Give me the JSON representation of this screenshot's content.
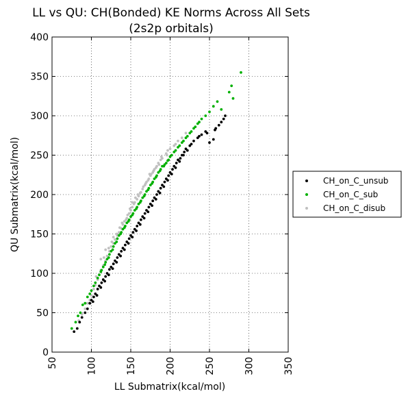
{
  "chart_data": {
    "type": "scatter",
    "title": "LL vs QU: CH(Bonded) KE Norms Across All Sets",
    "subtitle": "(2s2p orbitals)",
    "xlabel": "LL Submatrix(kcal/mol)",
    "ylabel": "QU Submatrix(kcal/mol)",
    "xlim": [
      50,
      350
    ],
    "ylim": [
      0,
      400
    ],
    "x_ticks": [
      50,
      100,
      150,
      200,
      250,
      300,
      350
    ],
    "y_ticks": [
      0,
      50,
      100,
      150,
      200,
      250,
      300,
      350,
      400
    ],
    "grid": true,
    "legend_position": "outside right",
    "series": [
      {
        "name": "CH_on_C_disub",
        "color": "#c0c0c0",
        "points": [
          [
            84,
            40
          ],
          [
            88,
            48
          ],
          [
            92,
            55
          ],
          [
            95,
            62
          ],
          [
            98,
            66
          ],
          [
            100,
            72
          ],
          [
            103,
            80
          ],
          [
            105,
            85
          ],
          [
            108,
            92
          ],
          [
            110,
            98
          ],
          [
            112,
            104
          ],
          [
            115,
            110
          ],
          [
            118,
            116
          ],
          [
            120,
            122
          ],
          [
            123,
            128
          ],
          [
            125,
            134
          ],
          [
            128,
            138
          ],
          [
            130,
            143
          ],
          [
            133,
            148
          ],
          [
            135,
            152
          ],
          [
            138,
            157
          ],
          [
            140,
            162
          ],
          [
            142,
            166
          ],
          [
            145,
            170
          ],
          [
            148,
            176
          ],
          [
            150,
            180
          ],
          [
            152,
            184
          ],
          [
            155,
            190
          ],
          [
            158,
            194
          ],
          [
            160,
            198
          ],
          [
            163,
            203
          ],
          [
            165,
            207
          ],
          [
            168,
            212
          ],
          [
            170,
            216
          ],
          [
            173,
            220
          ],
          [
            175,
            224
          ],
          [
            178,
            228
          ],
          [
            180,
            232
          ],
          [
            183,
            236
          ],
          [
            185,
            240
          ],
          [
            188,
            244
          ],
          [
            190,
            246
          ],
          [
            195,
            252
          ],
          [
            200,
            258
          ],
          [
            205,
            262
          ],
          [
            210,
            268
          ],
          [
            215,
            272
          ],
          [
            220,
            278
          ],
          [
            118,
            130
          ],
          [
            126,
            140
          ],
          [
            136,
            158
          ],
          [
            146,
            174
          ],
          [
            156,
            196
          ],
          [
            166,
            210
          ],
          [
            176,
            226
          ],
          [
            186,
            238
          ],
          [
            132,
            150
          ],
          [
            144,
            168
          ],
          [
            154,
            188
          ],
          [
            162,
            202
          ],
          [
            172,
            218
          ],
          [
            182,
            234
          ],
          [
            112,
            118
          ],
          [
            122,
            132
          ],
          [
            139,
            164
          ],
          [
            149,
            182
          ],
          [
            159,
            200
          ],
          [
            169,
            214
          ],
          [
            179,
            230
          ],
          [
            189,
            248
          ],
          [
            197,
            256
          ],
          [
            207,
            264
          ],
          [
            106,
            96
          ],
          [
            116,
            120
          ],
          [
            128,
            146
          ],
          [
            152,
            190
          ],
          [
            174,
            226
          ],
          [
            196,
            250
          ]
        ]
      },
      {
        "name": "CH_on_C_sub",
        "color": "#00b000",
        "points": [
          [
            75,
            30
          ],
          [
            80,
            38
          ],
          [
            83,
            46
          ],
          [
            86,
            50
          ],
          [
            89,
            60
          ],
          [
            92,
            62
          ],
          [
            95,
            70
          ],
          [
            98,
            74
          ],
          [
            100,
            78
          ],
          [
            103,
            84
          ],
          [
            105,
            88
          ],
          [
            108,
            94
          ],
          [
            110,
            98
          ],
          [
            113,
            104
          ],
          [
            115,
            108
          ],
          [
            118,
            114
          ],
          [
            120,
            118
          ],
          [
            123,
            124
          ],
          [
            125,
            128
          ],
          [
            128,
            134
          ],
          [
            130,
            138
          ],
          [
            133,
            144
          ],
          [
            135,
            148
          ],
          [
            138,
            152
          ],
          [
            140,
            156
          ],
          [
            143,
            160
          ],
          [
            145,
            164
          ],
          [
            148,
            168
          ],
          [
            150,
            172
          ],
          [
            153,
            176
          ],
          [
            155,
            180
          ],
          [
            158,
            184
          ],
          [
            160,
            188
          ],
          [
            163,
            192
          ],
          [
            165,
            196
          ],
          [
            168,
            200
          ],
          [
            170,
            204
          ],
          [
            173,
            208
          ],
          [
            175,
            212
          ],
          [
            178,
            216
          ],
          [
            180,
            220
          ],
          [
            183,
            224
          ],
          [
            185,
            228
          ],
          [
            188,
            232
          ],
          [
            190,
            236
          ],
          [
            193,
            238
          ],
          [
            195,
            240
          ],
          [
            198,
            244
          ],
          [
            200,
            248
          ],
          [
            205,
            254
          ],
          [
            210,
            260
          ],
          [
            215,
            266
          ],
          [
            220,
            272
          ],
          [
            225,
            278
          ],
          [
            230,
            284
          ],
          [
            235,
            290
          ],
          [
            240,
            296
          ],
          [
            245,
            300
          ],
          [
            250,
            305
          ],
          [
            255,
            312
          ],
          [
            260,
            318
          ],
          [
            265,
            308
          ],
          [
            275,
            330
          ],
          [
            278,
            338
          ],
          [
            280,
            322
          ],
          [
            290,
            355
          ],
          [
            112,
            102
          ],
          [
            122,
            120
          ],
          [
            132,
            140
          ],
          [
            142,
            158
          ],
          [
            152,
            174
          ],
          [
            162,
            190
          ],
          [
            172,
            206
          ],
          [
            182,
            222
          ],
          [
            192,
            236
          ],
          [
            202,
            250
          ],
          [
            212,
            262
          ],
          [
            222,
            274
          ],
          [
            232,
            286
          ],
          [
            117,
            111
          ],
          [
            127,
            130
          ],
          [
            137,
            150
          ],
          [
            147,
            166
          ],
          [
            157,
            182
          ],
          [
            167,
            198
          ],
          [
            177,
            214
          ],
          [
            187,
            230
          ],
          [
            197,
            243
          ],
          [
            207,
            256
          ],
          [
            217,
            268
          ],
          [
            227,
            280
          ],
          [
            237,
            292
          ]
        ]
      },
      {
        "name": "CH_on_C_unsub",
        "color": "#000000",
        "points": [
          [
            78,
            26
          ],
          [
            82,
            30
          ],
          [
            85,
            38
          ],
          [
            88,
            44
          ],
          [
            92,
            50
          ],
          [
            95,
            55
          ],
          [
            98,
            62
          ],
          [
            100,
            66
          ],
          [
            103,
            70
          ],
          [
            105,
            74
          ],
          [
            108,
            80
          ],
          [
            110,
            84
          ],
          [
            113,
            88
          ],
          [
            115,
            92
          ],
          [
            118,
            96
          ],
          [
            120,
            100
          ],
          [
            123,
            105
          ],
          [
            125,
            108
          ],
          [
            128,
            112
          ],
          [
            130,
            116
          ],
          [
            133,
            120
          ],
          [
            135,
            124
          ],
          [
            138,
            128
          ],
          [
            140,
            132
          ],
          [
            143,
            136
          ],
          [
            145,
            140
          ],
          [
            148,
            144
          ],
          [
            150,
            148
          ],
          [
            153,
            152
          ],
          [
            155,
            156
          ],
          [
            158,
            160
          ],
          [
            160,
            164
          ],
          [
            163,
            168
          ],
          [
            165,
            172
          ],
          [
            168,
            176
          ],
          [
            170,
            180
          ],
          [
            173,
            184
          ],
          [
            175,
            188
          ],
          [
            178,
            192
          ],
          [
            180,
            196
          ],
          [
            183,
            200
          ],
          [
            185,
            204
          ],
          [
            188,
            208
          ],
          [
            190,
            212
          ],
          [
            193,
            216
          ],
          [
            195,
            220
          ],
          [
            198,
            224
          ],
          [
            200,
            228
          ],
          [
            203,
            232
          ],
          [
            205,
            236
          ],
          [
            208,
            240
          ],
          [
            210,
            244
          ],
          [
            213,
            246
          ],
          [
            215,
            250
          ],
          [
            218,
            254
          ],
          [
            220,
            258
          ],
          [
            225,
            262
          ],
          [
            230,
            268
          ],
          [
            235,
            272
          ],
          [
            240,
            276
          ],
          [
            245,
            280
          ],
          [
            250,
            266
          ],
          [
            255,
            270
          ],
          [
            258,
            284
          ],
          [
            262,
            288
          ],
          [
            265,
            292
          ],
          [
            268,
            296
          ],
          [
            270,
            300
          ],
          [
            102,
            64
          ],
          [
            112,
            82
          ],
          [
            122,
            98
          ],
          [
            132,
            114
          ],
          [
            142,
            130
          ],
          [
            152,
            146
          ],
          [
            162,
            162
          ],
          [
            172,
            178
          ],
          [
            182,
            194
          ],
          [
            192,
            210
          ],
          [
            202,
            226
          ],
          [
            212,
            242
          ],
          [
            222,
            256
          ],
          [
            107,
            72
          ],
          [
            117,
            90
          ],
          [
            127,
            106
          ],
          [
            137,
            122
          ],
          [
            147,
            138
          ],
          [
            157,
            154
          ],
          [
            167,
            170
          ],
          [
            177,
            186
          ],
          [
            187,
            202
          ],
          [
            197,
            218
          ],
          [
            207,
            234
          ],
          [
            217,
            250
          ],
          [
            227,
            264
          ],
          [
            237,
            274
          ],
          [
            247,
            278
          ],
          [
            257,
            282
          ]
        ]
      }
    ],
    "legend_order": [
      "CH_on_C_unsub",
      "CH_on_C_sub",
      "CH_on_C_disub"
    ]
  }
}
